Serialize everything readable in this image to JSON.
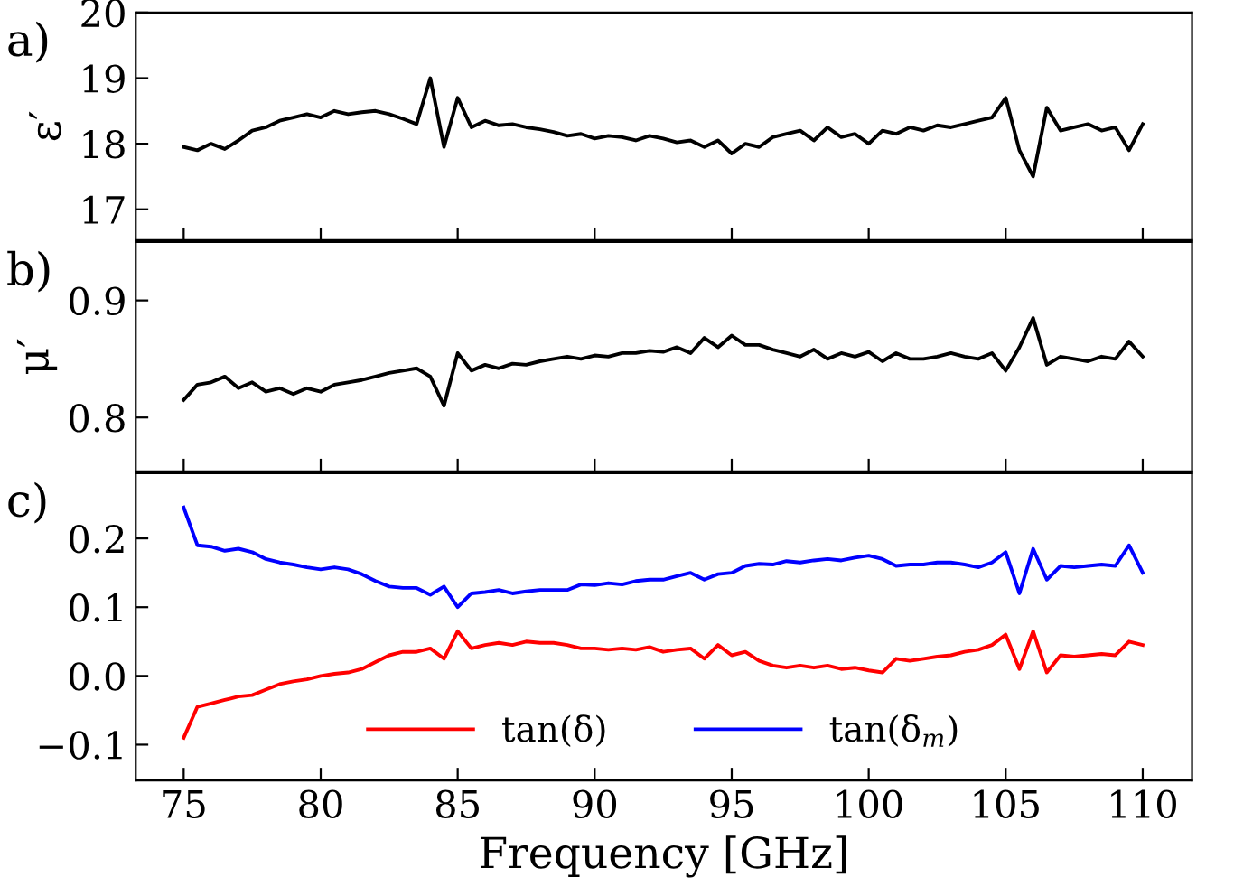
{
  "chart_data": [
    {
      "type": "line",
      "ylabel": "ε′",
      "annotations": [
        "a)"
      ],
      "tick_labels": "y",
      "xlim": [
        73.25,
        111.8
      ],
      "xticks": [
        75,
        80,
        85,
        90,
        95,
        100,
        105,
        110
      ],
      "ylim": [
        16.53,
        20
      ],
      "yticks": [
        17,
        18,
        19,
        20
      ],
      "grid": false,
      "legend": false,
      "marker": "none",
      "line_style": "solid",
      "x": [
        75,
        75.5,
        76,
        76.5,
        77,
        77.5,
        78,
        78.5,
        79,
        79.5,
        80,
        80.5,
        81,
        81.5,
        82,
        82.5,
        83,
        83.5,
        84,
        84.5,
        85,
        85.5,
        86,
        86.5,
        87,
        87.5,
        88,
        88.5,
        89,
        89.5,
        90,
        90.5,
        91,
        91.5,
        92,
        92.5,
        93,
        93.5,
        94,
        94.5,
        95,
        95.5,
        96,
        96.5,
        97,
        97.5,
        98,
        98.5,
        99,
        99.5,
        100,
        100.5,
        101,
        101.5,
        102,
        102.5,
        103,
        103.5,
        104,
        104.5,
        105,
        105.5,
        106,
        106.5,
        107,
        107.5,
        108,
        108.5,
        109,
        109.5,
        110
      ],
      "series": [
        {
          "color": "#000000",
          "values": [
            17.95,
            17.9,
            18.0,
            17.92,
            18.05,
            18.2,
            18.25,
            18.35,
            18.4,
            18.45,
            18.4,
            18.5,
            18.45,
            18.48,
            18.5,
            18.45,
            18.38,
            18.3,
            19.0,
            17.95,
            18.7,
            18.25,
            18.35,
            18.28,
            18.3,
            18.25,
            18.22,
            18.18,
            18.12,
            18.15,
            18.08,
            18.12,
            18.1,
            18.05,
            18.12,
            18.08,
            18.02,
            18.05,
            17.95,
            18.05,
            17.85,
            18.0,
            17.95,
            18.1,
            18.15,
            18.2,
            18.05,
            18.25,
            18.1,
            18.15,
            18.0,
            18.2,
            18.15,
            18.25,
            18.2,
            18.28,
            18.25,
            18.3,
            18.35,
            18.4,
            18.7,
            17.9,
            17.5,
            18.55,
            18.2,
            18.25,
            18.3,
            18.2,
            18.25,
            17.9,
            18.3
          ]
        }
      ]
    },
    {
      "type": "line",
      "ylabel": "μ′",
      "annotations": [
        "b)"
      ],
      "tick_labels": "y",
      "xlim": [
        73.25,
        111.8
      ],
      "xticks": [
        75,
        80,
        85,
        90,
        95,
        100,
        105,
        110
      ],
      "ylim": [
        0.754,
        0.95
      ],
      "yticks": [
        0.8,
        0.9
      ],
      "grid": false,
      "legend": false,
      "marker": "none",
      "line_style": "solid",
      "x": [
        75,
        75.5,
        76,
        76.5,
        77,
        77.5,
        78,
        78.5,
        79,
        79.5,
        80,
        80.5,
        81,
        81.5,
        82,
        82.5,
        83,
        83.5,
        84,
        84.5,
        85,
        85.5,
        86,
        86.5,
        87,
        87.5,
        88,
        88.5,
        89,
        89.5,
        90,
        90.5,
        91,
        91.5,
        92,
        92.5,
        93,
        93.5,
        94,
        94.5,
        95,
        95.5,
        96,
        96.5,
        97,
        97.5,
        98,
        98.5,
        99,
        99.5,
        100,
        100.5,
        101,
        101.5,
        102,
        102.5,
        103,
        103.5,
        104,
        104.5,
        105,
        105.5,
        106,
        106.5,
        107,
        107.5,
        108,
        108.5,
        109,
        109.5,
        110
      ],
      "series": [
        {
          "color": "#000000",
          "values": [
            0.815,
            0.828,
            0.83,
            0.835,
            0.825,
            0.83,
            0.822,
            0.825,
            0.82,
            0.825,
            0.822,
            0.828,
            0.83,
            0.832,
            0.835,
            0.838,
            0.84,
            0.842,
            0.835,
            0.81,
            0.855,
            0.84,
            0.845,
            0.842,
            0.846,
            0.845,
            0.848,
            0.85,
            0.852,
            0.85,
            0.853,
            0.852,
            0.855,
            0.855,
            0.857,
            0.856,
            0.86,
            0.855,
            0.868,
            0.86,
            0.87,
            0.862,
            0.862,
            0.858,
            0.855,
            0.852,
            0.858,
            0.85,
            0.855,
            0.852,
            0.856,
            0.848,
            0.855,
            0.85,
            0.85,
            0.852,
            0.855,
            0.852,
            0.85,
            0.855,
            0.84,
            0.86,
            0.885,
            0.845,
            0.852,
            0.85,
            0.848,
            0.852,
            0.85,
            0.865,
            0.852
          ]
        }
      ]
    },
    {
      "type": "line",
      "xlabel": "Frequency [GHz]",
      "annotations": [
        "c)"
      ],
      "xlim": [
        73.25,
        111.8
      ],
      "xticks": [
        75,
        80,
        85,
        90,
        95,
        100,
        105,
        110
      ],
      "ylim": [
        -0.152,
        0.295
      ],
      "yticks": [
        {
          "value": -0.1,
          "label": "−0.1"
        },
        {
          "value": 0.0,
          "label": "0.0"
        },
        {
          "value": 0.1,
          "label": "0.1"
        },
        {
          "value": 0.2,
          "label": "0.2"
        }
      ],
      "grid": false,
      "legend": "bottom",
      "marker": "none",
      "line_style": "solid",
      "x": [
        75,
        75.5,
        76,
        76.5,
        77,
        77.5,
        78,
        78.5,
        79,
        79.5,
        80,
        80.5,
        81,
        81.5,
        82,
        82.5,
        83,
        83.5,
        84,
        84.5,
        85,
        85.5,
        86,
        86.5,
        87,
        87.5,
        88,
        88.5,
        89,
        89.5,
        90,
        90.5,
        91,
        91.5,
        92,
        92.5,
        93,
        93.5,
        94,
        94.5,
        95,
        95.5,
        96,
        96.5,
        97,
        97.5,
        98,
        98.5,
        99,
        99.5,
        100,
        100.5,
        101,
        101.5,
        102,
        102.5,
        103,
        103.5,
        104,
        104.5,
        105,
        105.5,
        106,
        106.5,
        107,
        107.5,
        108,
        108.5,
        109,
        109.5,
        110
      ],
      "series": [
        {
          "name": "tan(δ)",
          "color": "#ff0000",
          "values": [
            -0.09,
            -0.045,
            -0.04,
            -0.035,
            -0.03,
            -0.028,
            -0.02,
            -0.012,
            -0.008,
            -0.005,
            0.0,
            0.003,
            0.005,
            0.01,
            0.02,
            0.03,
            0.035,
            0.035,
            0.04,
            0.025,
            0.065,
            0.04,
            0.045,
            0.048,
            0.045,
            0.05,
            0.048,
            0.048,
            0.045,
            0.04,
            0.04,
            0.038,
            0.04,
            0.038,
            0.042,
            0.035,
            0.038,
            0.04,
            0.025,
            0.045,
            0.03,
            0.035,
            0.022,
            0.015,
            0.012,
            0.015,
            0.012,
            0.015,
            0.01,
            0.012,
            0.008,
            0.005,
            0.025,
            0.022,
            0.025,
            0.028,
            0.03,
            0.035,
            0.038,
            0.045,
            0.06,
            0.01,
            0.065,
            0.005,
            0.03,
            0.028,
            0.03,
            0.032,
            0.03,
            0.05,
            0.045
          ]
        },
        {
          "name": "tan(δ$_{m}$)",
          "color": "#0000ff",
          "values": [
            0.245,
            0.19,
            0.188,
            0.182,
            0.185,
            0.18,
            0.17,
            0.165,
            0.162,
            0.158,
            0.155,
            0.158,
            0.155,
            0.148,
            0.138,
            0.13,
            0.128,
            0.128,
            0.118,
            0.13,
            0.1,
            0.12,
            0.122,
            0.125,
            0.12,
            0.123,
            0.125,
            0.125,
            0.125,
            0.133,
            0.132,
            0.135,
            0.133,
            0.138,
            0.14,
            0.14,
            0.145,
            0.15,
            0.14,
            0.148,
            0.15,
            0.16,
            0.163,
            0.162,
            0.167,
            0.165,
            0.168,
            0.17,
            0.168,
            0.172,
            0.175,
            0.17,
            0.16,
            0.162,
            0.162,
            0.165,
            0.165,
            0.162,
            0.158,
            0.165,
            0.18,
            0.12,
            0.185,
            0.14,
            0.16,
            0.158,
            0.16,
            0.162,
            0.16,
            0.19,
            0.15
          ]
        }
      ]
    }
  ]
}
